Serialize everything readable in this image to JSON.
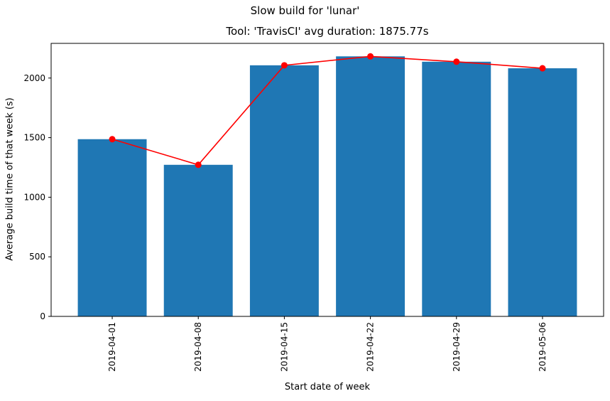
{
  "chart_data": {
    "type": "bar",
    "suptitle": "Slow build for 'lunar'",
    "title": "Tool: 'TravisCI' avg duration: 1875.77s",
    "xlabel": "Start date of week",
    "ylabel": "Average build time of that week (s)",
    "categories": [
      "2019-04-01",
      "2019-04-08",
      "2019-04-15",
      "2019-04-22",
      "2019-04-29",
      "2019-05-06"
    ],
    "series": [
      {
        "type": "bar",
        "values": [
          1487,
          1272,
          2107,
          2182,
          2137,
          2082
        ],
        "color": "#1f77b4"
      },
      {
        "type": "line",
        "values": [
          1487,
          1272,
          2107,
          2182,
          2137,
          2082
        ],
        "color": "#ff0000",
        "marker": "circle"
      }
    ],
    "yticks": [
      0,
      500,
      1000,
      1500,
      2000
    ],
    "ylim": [
      0,
      2291
    ],
    "xtick_rotation": "vertical",
    "grid": false
  }
}
